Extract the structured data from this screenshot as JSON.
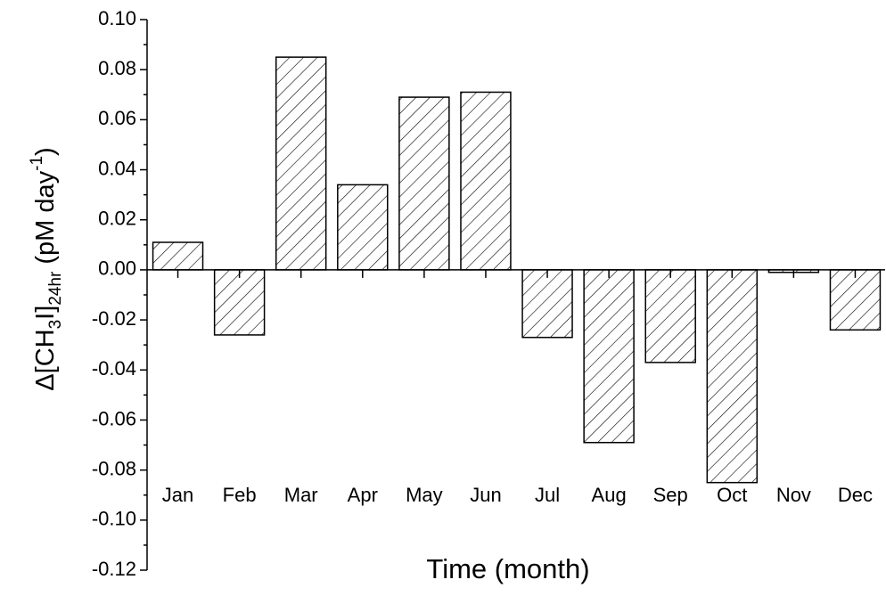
{
  "chart_data": {
    "type": "bar",
    "x_label": "Time (month)",
    "y_label": [
      {
        "text": "Δ[CH"
      },
      {
        "text": "3",
        "shift": "sub"
      },
      {
        "text": "I]"
      },
      {
        "text": "24hr",
        "shift": "sub"
      },
      {
        "text": "  (pM day"
      },
      {
        "text": "-1",
        "shift": "super"
      },
      {
        "text": ")"
      }
    ],
    "categories": [
      "Jan",
      "Feb",
      "Mar",
      "Apr",
      "May",
      "Jun",
      "Jul",
      "Aug",
      "Sep",
      "Oct",
      "Nov",
      "Dec"
    ],
    "values": [
      0.011,
      -0.026,
      0.085,
      0.034,
      0.069,
      0.071,
      -0.027,
      -0.069,
      -0.037,
      -0.085,
      -0.001,
      -0.024
    ],
    "color": "#000000",
    "ylim": [
      -0.12,
      0.1
    ],
    "yticks": [
      {
        "value": 0.1,
        "label": "0.10"
      },
      {
        "value": 0.08,
        "label": "0.08"
      },
      {
        "value": 0.06,
        "label": "0.06"
      },
      {
        "value": 0.04,
        "label": "0.04"
      },
      {
        "value": 0.02,
        "label": "0.02"
      },
      {
        "value": 0.0,
        "label": "0.00"
      },
      {
        "value": -0.02,
        "label": "-0.02"
      },
      {
        "value": -0.04,
        "label": "-0.04"
      },
      {
        "value": -0.06,
        "label": "-0.06"
      },
      {
        "value": -0.08,
        "label": "-0.08"
      },
      {
        "value": -0.1,
        "label": "-0.10"
      },
      {
        "value": -0.12,
        "label": "-0.12"
      }
    ],
    "grid": false
  }
}
